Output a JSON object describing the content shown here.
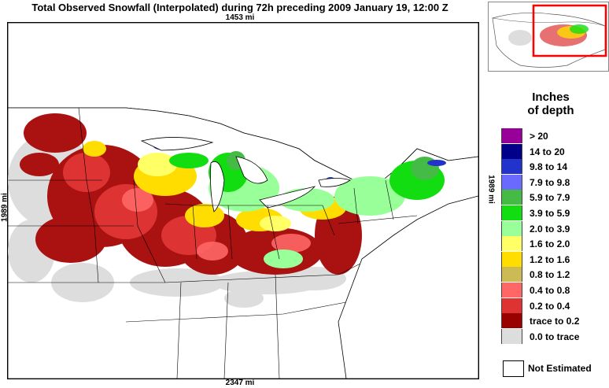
{
  "title": "Total Observed Snowfall (Interpolated) during 72h preceding 2009 January 19, 12:00 Z",
  "distances": {
    "top": "1453 mi",
    "bottom": "2347 mi",
    "left": "1989 mi",
    "right": "1989 mi"
  },
  "legend": {
    "title_line1": "Inches",
    "title_line2": "of depth",
    "items": [
      {
        "label": ">   20",
        "color": "#990099"
      },
      {
        "label": "14 to   20",
        "color": "#00008b"
      },
      {
        "label": "9.8 to   14",
        "color": "#2233cc"
      },
      {
        "label": "7.9 to   9.8",
        "color": "#6a6aff"
      },
      {
        "label": "5.9 to   7.9",
        "color": "#44bb44"
      },
      {
        "label": "3.9 to   5.9",
        "color": "#11dd11"
      },
      {
        "label": "2.0 to   3.9",
        "color": "#99ff99"
      },
      {
        "label": "1.6 to   2.0",
        "color": "#ffff66"
      },
      {
        "label": "1.2 to   1.6",
        "color": "#ffdd00"
      },
      {
        "label": "0.8 to   1.2",
        "color": "#ccbb55"
      },
      {
        "label": "0.4 to   0.8",
        "color": "#ff6666"
      },
      {
        "label": "0.2 to   0.4",
        "color": "#dd3333"
      },
      {
        "label": "trace to   0.2",
        "color": "#990000"
      },
      {
        "label": "0.0 to trace",
        "color": "#dddddd"
      }
    ],
    "not_estimated": "Not Estimated"
  },
  "colors": {
    "water": "#ffffff",
    "land_outline": "#000000",
    "inset_box": "#ff0000"
  }
}
